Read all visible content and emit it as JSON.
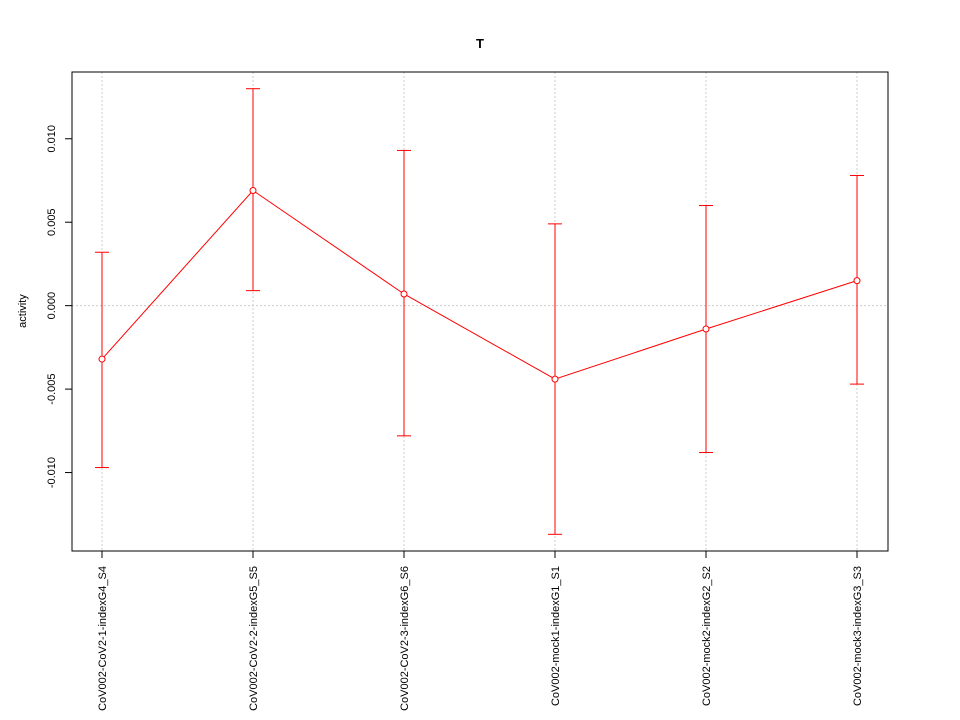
{
  "chart_data": {
    "type": "line",
    "title": "T",
    "xlabel": "",
    "ylabel": "activity",
    "categories": [
      "CoV002-CoV2-1-indexG4_S4",
      "CoV002-CoV2-2-indexG5_S5",
      "CoV002-CoV2-3-indexG6_S6",
      "CoV002-mock1-indexG1_S1",
      "CoV002-mock2-indexG2_S2",
      "CoV002-mock3-indexG3_S3"
    ],
    "series": [
      {
        "values": [
          -0.0032,
          0.0069,
          0.0007,
          -0.0044,
          -0.0014,
          0.0015
        ],
        "error_low": [
          -0.0097,
          0.0009,
          -0.0078,
          -0.0137,
          -0.0088,
          -0.0047
        ],
        "error_high": [
          0.0032,
          0.013,
          0.0093,
          0.0049,
          0.006,
          0.0078
        ],
        "color": "#ff0000"
      }
    ],
    "yticks": [
      -0.01,
      -0.005,
      0.0,
      0.005,
      0.01
    ],
    "ytick_labels": [
      "-0.010",
      "-0.005",
      "0.000",
      "0.005",
      "0.010"
    ],
    "ylim": [
      -0.0147,
      0.014
    ],
    "grid": true,
    "legend": "none"
  }
}
